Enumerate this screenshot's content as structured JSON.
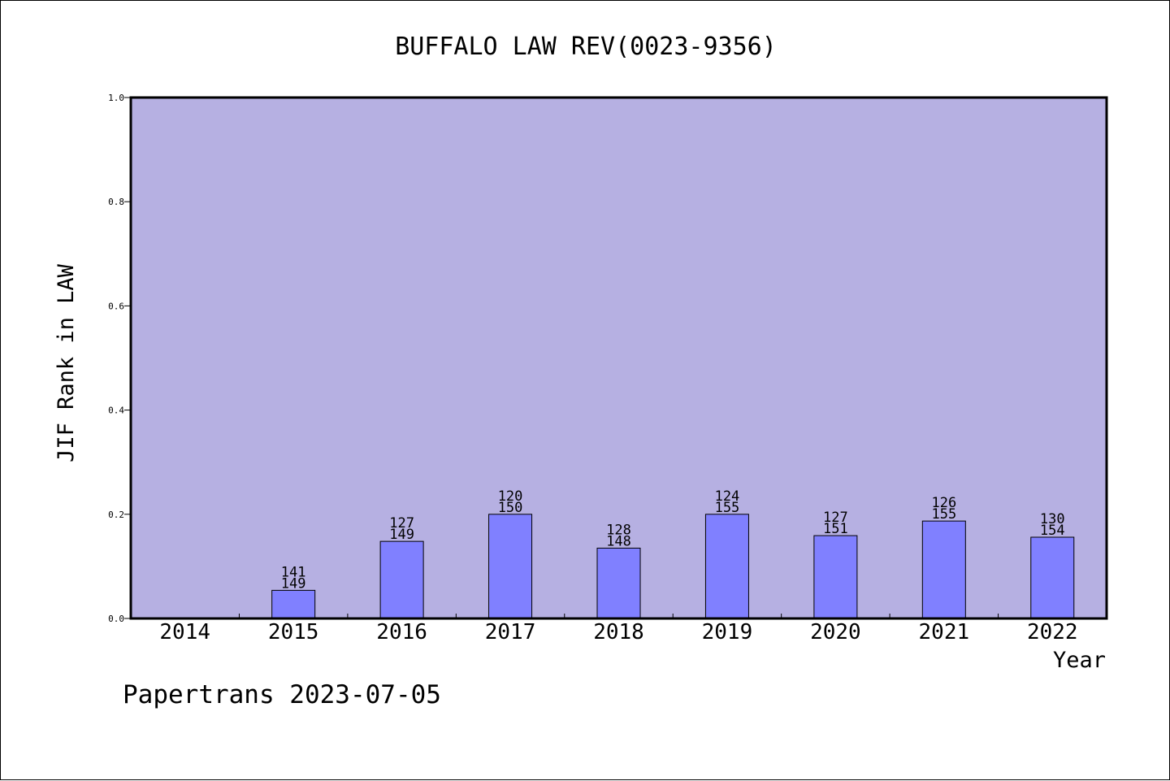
{
  "chart_data": {
    "type": "bar",
    "title": "BUFFALO LAW REV(0023-9356)",
    "xlabel": "Year",
    "ylabel": "JIF Rank in LAW",
    "footer": "Papertrans 2023-07-05",
    "ylim": [
      0,
      1.0
    ],
    "yticks": [
      "0.0",
      "0.2",
      "0.4",
      "0.6",
      "0.8",
      "1.0"
    ],
    "categories": [
      "2014",
      "2015",
      "2016",
      "2017",
      "2018",
      "2019",
      "2020",
      "2021",
      "2022"
    ],
    "values": [
      null,
      0.054,
      0.148,
      0.2,
      0.135,
      0.2,
      0.159,
      0.187,
      0.156
    ],
    "rank": [
      null,
      "141",
      "127",
      "120",
      "128",
      "124",
      "127",
      "126",
      "130"
    ],
    "total": [
      null,
      "149",
      "149",
      "150",
      "148",
      "155",
      "151",
      "155",
      "154"
    ],
    "grid": false,
    "legend": "none",
    "colors": {
      "plot_background": "#b6b0e2",
      "bar_fill": "#8080ff",
      "axis": "#000000"
    }
  }
}
